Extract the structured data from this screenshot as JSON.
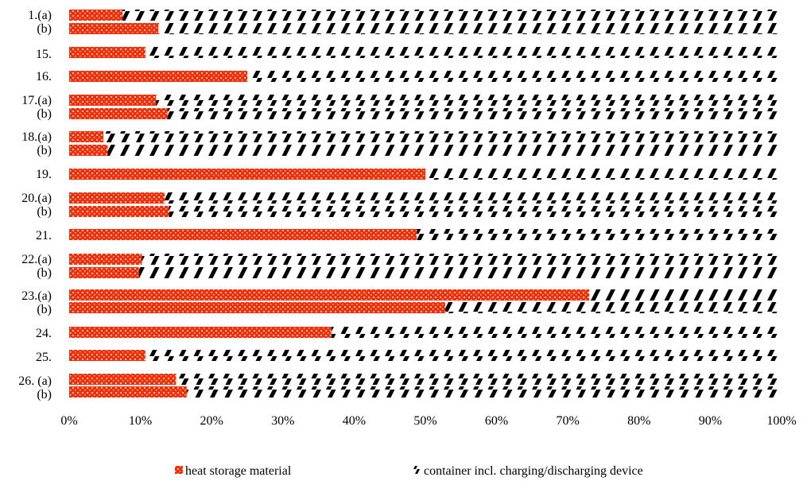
{
  "chart_data": {
    "type": "bar",
    "orientation": "horizontal",
    "stacked": true,
    "normalized_percent": true,
    "xlim": [
      0,
      100
    ],
    "x_ticks": [
      "0%",
      "10%",
      "20%",
      "30%",
      "40%",
      "50%",
      "60%",
      "70%",
      "80%",
      "90%",
      "100%"
    ],
    "grid": false,
    "legend_position": "bottom",
    "group_labels": [
      "1.(a)",
      "15.",
      "16.",
      "17.(a)",
      "18.(a)",
      "19.",
      "20.(a)",
      "21.",
      "22.(a)",
      "23.(a)",
      "24.",
      "25.",
      "26. (a)"
    ],
    "sub_labels": [
      "(b)",
      "(b)",
      "(b)",
      "(b)",
      "(b)",
      "(b)",
      "(b)"
    ],
    "series": [
      {
        "name": "heat storage material",
        "color": "#ff2a00",
        "pattern": "dotted",
        "values": [
          7.5,
          12.5,
          10.7,
          25.0,
          12.2,
          13.8,
          4.8,
          5.4,
          50.0,
          13.4,
          14.0,
          48.8,
          10.2,
          9.8,
          73.0,
          52.8,
          36.8,
          10.7,
          15.0,
          16.5
        ]
      },
      {
        "name": "container incl. charging/discharging device",
        "color": "#000000",
        "pattern": "diagonal-dash",
        "values": [
          92.5,
          87.5,
          89.3,
          75.0,
          87.8,
          86.2,
          95.2,
          94.6,
          50.0,
          86.6,
          86.0,
          51.2,
          89.8,
          90.2,
          27.0,
          47.2,
          63.2,
          89.3,
          85.0,
          83.5
        ]
      }
    ]
  }
}
